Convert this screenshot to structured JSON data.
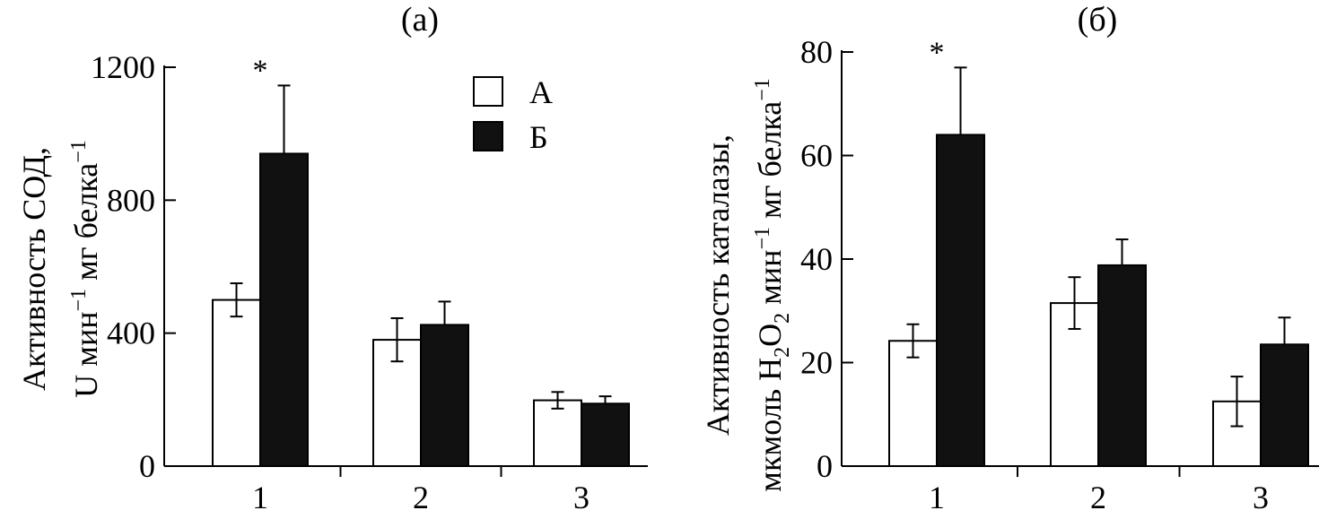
{
  "chart_data": [
    {
      "type": "bar",
      "panel_label": "(а)",
      "categories": [
        "1",
        "2",
        "3"
      ],
      "series": [
        {
          "name": "А",
          "color": "#ffffff",
          "values": [
            500,
            380,
            198
          ],
          "errors": [
            50,
            65,
            25
          ]
        },
        {
          "name": "Б",
          "color": "#111111",
          "values": [
            940,
            425,
            188
          ],
          "errors": [
            205,
            70,
            22
          ]
        }
      ],
      "ylabel_line1": "Активность СОД,",
      "ylabel_line2": "U мин",
      "ylabel_sup2": "−1",
      "ylabel_line2_tail": " мг белка",
      "ylabel_sup3": "−1",
      "ylim": [
        0,
        1200
      ],
      "yticks": [
        "0",
        "400",
        "800",
        "1200"
      ],
      "ytick_values": [
        0,
        400,
        800,
        1200
      ],
      "annotations": [
        {
          "category": "1",
          "text": "*"
        }
      ],
      "legend": {
        "position": "top-center",
        "entries": [
          "А",
          "Б"
        ]
      }
    },
    {
      "type": "bar",
      "panel_label": "(б)",
      "categories": [
        "1",
        "2",
        "3"
      ],
      "series": [
        {
          "name": "А",
          "color": "#ffffff",
          "values": [
            24.2,
            31.5,
            12.5
          ],
          "errors": [
            3.2,
            5,
            4.8
          ]
        },
        {
          "name": "Б",
          "color": "#111111",
          "values": [
            64,
            38.8,
            23.5
          ],
          "errors": [
            13,
            5,
            5.2
          ]
        }
      ],
      "ylabel_line1": "Активность каталазы,",
      "ylabel_line2_parts": [
        "мкмоль H",
        "2",
        "O",
        "2",
        " мин",
        "−1",
        " мг белка",
        "−1"
      ],
      "ylim": [
        0,
        80
      ],
      "yticks": [
        "0",
        "20",
        "40",
        "60",
        "80"
      ],
      "ytick_values": [
        0,
        20,
        40,
        60,
        80
      ],
      "annotations": [
        {
          "category": "1",
          "text": "*"
        }
      ]
    }
  ]
}
